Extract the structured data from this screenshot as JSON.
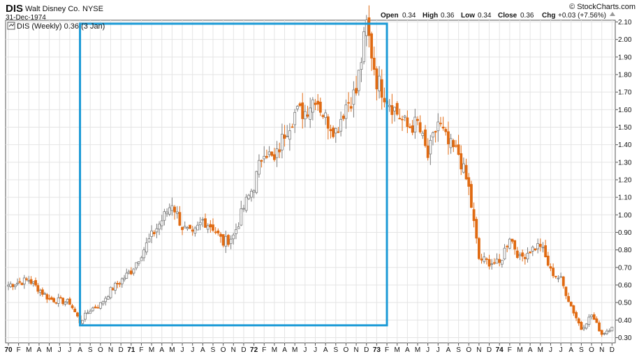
{
  "header": {
    "ticker": "DIS",
    "company": "Walt Disney Co.",
    "exchange": "NYSE",
    "date": "31-Dec-1974",
    "source": "© StockCharts.com",
    "ohlc": {
      "open_label": "Open",
      "open": "0.34",
      "high_label": "High",
      "high": "0.36",
      "low_label": "Low",
      "low": "0.34",
      "close_label": "Close",
      "close": "0.36",
      "chg_label": "Chg",
      "chg": "+0.03 (+7.56%)"
    }
  },
  "legend": {
    "text": "DIS (Weekly) 0.36 (3 Jan)"
  },
  "colors": {
    "up": "#909090",
    "down": "#e06a12",
    "box": "#1b9ad6",
    "grid": "#e4e4e4"
  },
  "chart_data": {
    "type": "candlestick",
    "ylim": [
      0.27,
      2.11
    ],
    "y_ticks": [
      "2.10",
      "2.00",
      "1.90",
      "1.80",
      "1.70",
      "1.60",
      "1.50",
      "1.40",
      "1.30",
      "1.20",
      "1.10",
      "1.00",
      "0.90",
      "0.80",
      "0.70",
      "0.60",
      "0.50",
      "0.40",
      "0.30"
    ],
    "x_ticks": [
      "70",
      "F",
      "M",
      "A",
      "M",
      "J",
      "J",
      "A",
      "S",
      "O",
      "N",
      "D",
      "71",
      "F",
      "M",
      "A",
      "M",
      "J",
      "J",
      "A",
      "S",
      "O",
      "N",
      "D",
      "72",
      "F",
      "M",
      "A",
      "M",
      "J",
      "J",
      "A",
      "S",
      "O",
      "N",
      "D",
      "73",
      "F",
      "M",
      "A",
      "M",
      "J",
      "J",
      "A",
      "S",
      "O",
      "N",
      "D",
      "74",
      "F",
      "M",
      "A",
      "M",
      "J",
      "J",
      "A",
      "S",
      "O",
      "N",
      "D"
    ],
    "bold_ticks": [
      "70",
      "71",
      "72",
      "73",
      "74"
    ],
    "x_range": [
      "1970-01",
      "1974-12"
    ],
    "highlight_box": {
      "from": "1970-08",
      "to": "1973-02",
      "low": 0.37,
      "high": 2.09
    },
    "close_anchors": [
      [
        "1970-01",
        0.6
      ],
      [
        "1970-03",
        0.63
      ],
      [
        "1970-05",
        0.52
      ],
      [
        "1970-07",
        0.5
      ],
      [
        "1970-08",
        0.39
      ],
      [
        "1970-09",
        0.46
      ],
      [
        "1970-10",
        0.49
      ],
      [
        "1970-11",
        0.57
      ],
      [
        "1971-01",
        0.68
      ],
      [
        "1971-02",
        0.78
      ],
      [
        "1971-03",
        0.88
      ],
      [
        "1971-04",
        0.97
      ],
      [
        "1971-05",
        1.07
      ],
      [
        "1971-06",
        0.93
      ],
      [
        "1971-07",
        0.88
      ],
      [
        "1971-08",
        0.97
      ],
      [
        "1971-09",
        0.93
      ],
      [
        "1971-10",
        0.84
      ],
      [
        "1971-11",
        0.88
      ],
      [
        "1971-12",
        1.04
      ],
      [
        "1972-01",
        1.17
      ],
      [
        "1972-02",
        1.38
      ],
      [
        "1972-03",
        1.3
      ],
      [
        "1972-04",
        1.47
      ],
      [
        "1972-05",
        1.58
      ],
      [
        "1972-06",
        1.59
      ],
      [
        "1972-07",
        1.68
      ],
      [
        "1972-08",
        1.55
      ],
      [
        "1972-09",
        1.48
      ],
      [
        "1972-10",
        1.63
      ],
      [
        "1972-11",
        1.7
      ],
      [
        "1972-12",
        2.08
      ],
      [
        "1973-01",
        1.77
      ],
      [
        "1973-02",
        1.67
      ],
      [
        "1973-03",
        1.58
      ],
      [
        "1973-04",
        1.5
      ],
      [
        "1973-05",
        1.52
      ],
      [
        "1973-06",
        1.33
      ],
      [
        "1973-07",
        1.53
      ],
      [
        "1973-08",
        1.4
      ],
      [
        "1973-09",
        1.35
      ],
      [
        "1973-10",
        1.15
      ],
      [
        "1973-11",
        0.75
      ],
      [
        "1973-12",
        0.73
      ],
      [
        "1974-01",
        0.72
      ],
      [
        "1974-02",
        0.88
      ],
      [
        "1974-03",
        0.75
      ],
      [
        "1974-04",
        0.8
      ],
      [
        "1974-05",
        0.83
      ],
      [
        "1974-06",
        0.68
      ],
      [
        "1974-07",
        0.63
      ],
      [
        "1974-08",
        0.48
      ],
      [
        "1974-09",
        0.35
      ],
      [
        "1974-10",
        0.43
      ],
      [
        "1974-11",
        0.32
      ],
      [
        "1974-12",
        0.36
      ]
    ]
  }
}
